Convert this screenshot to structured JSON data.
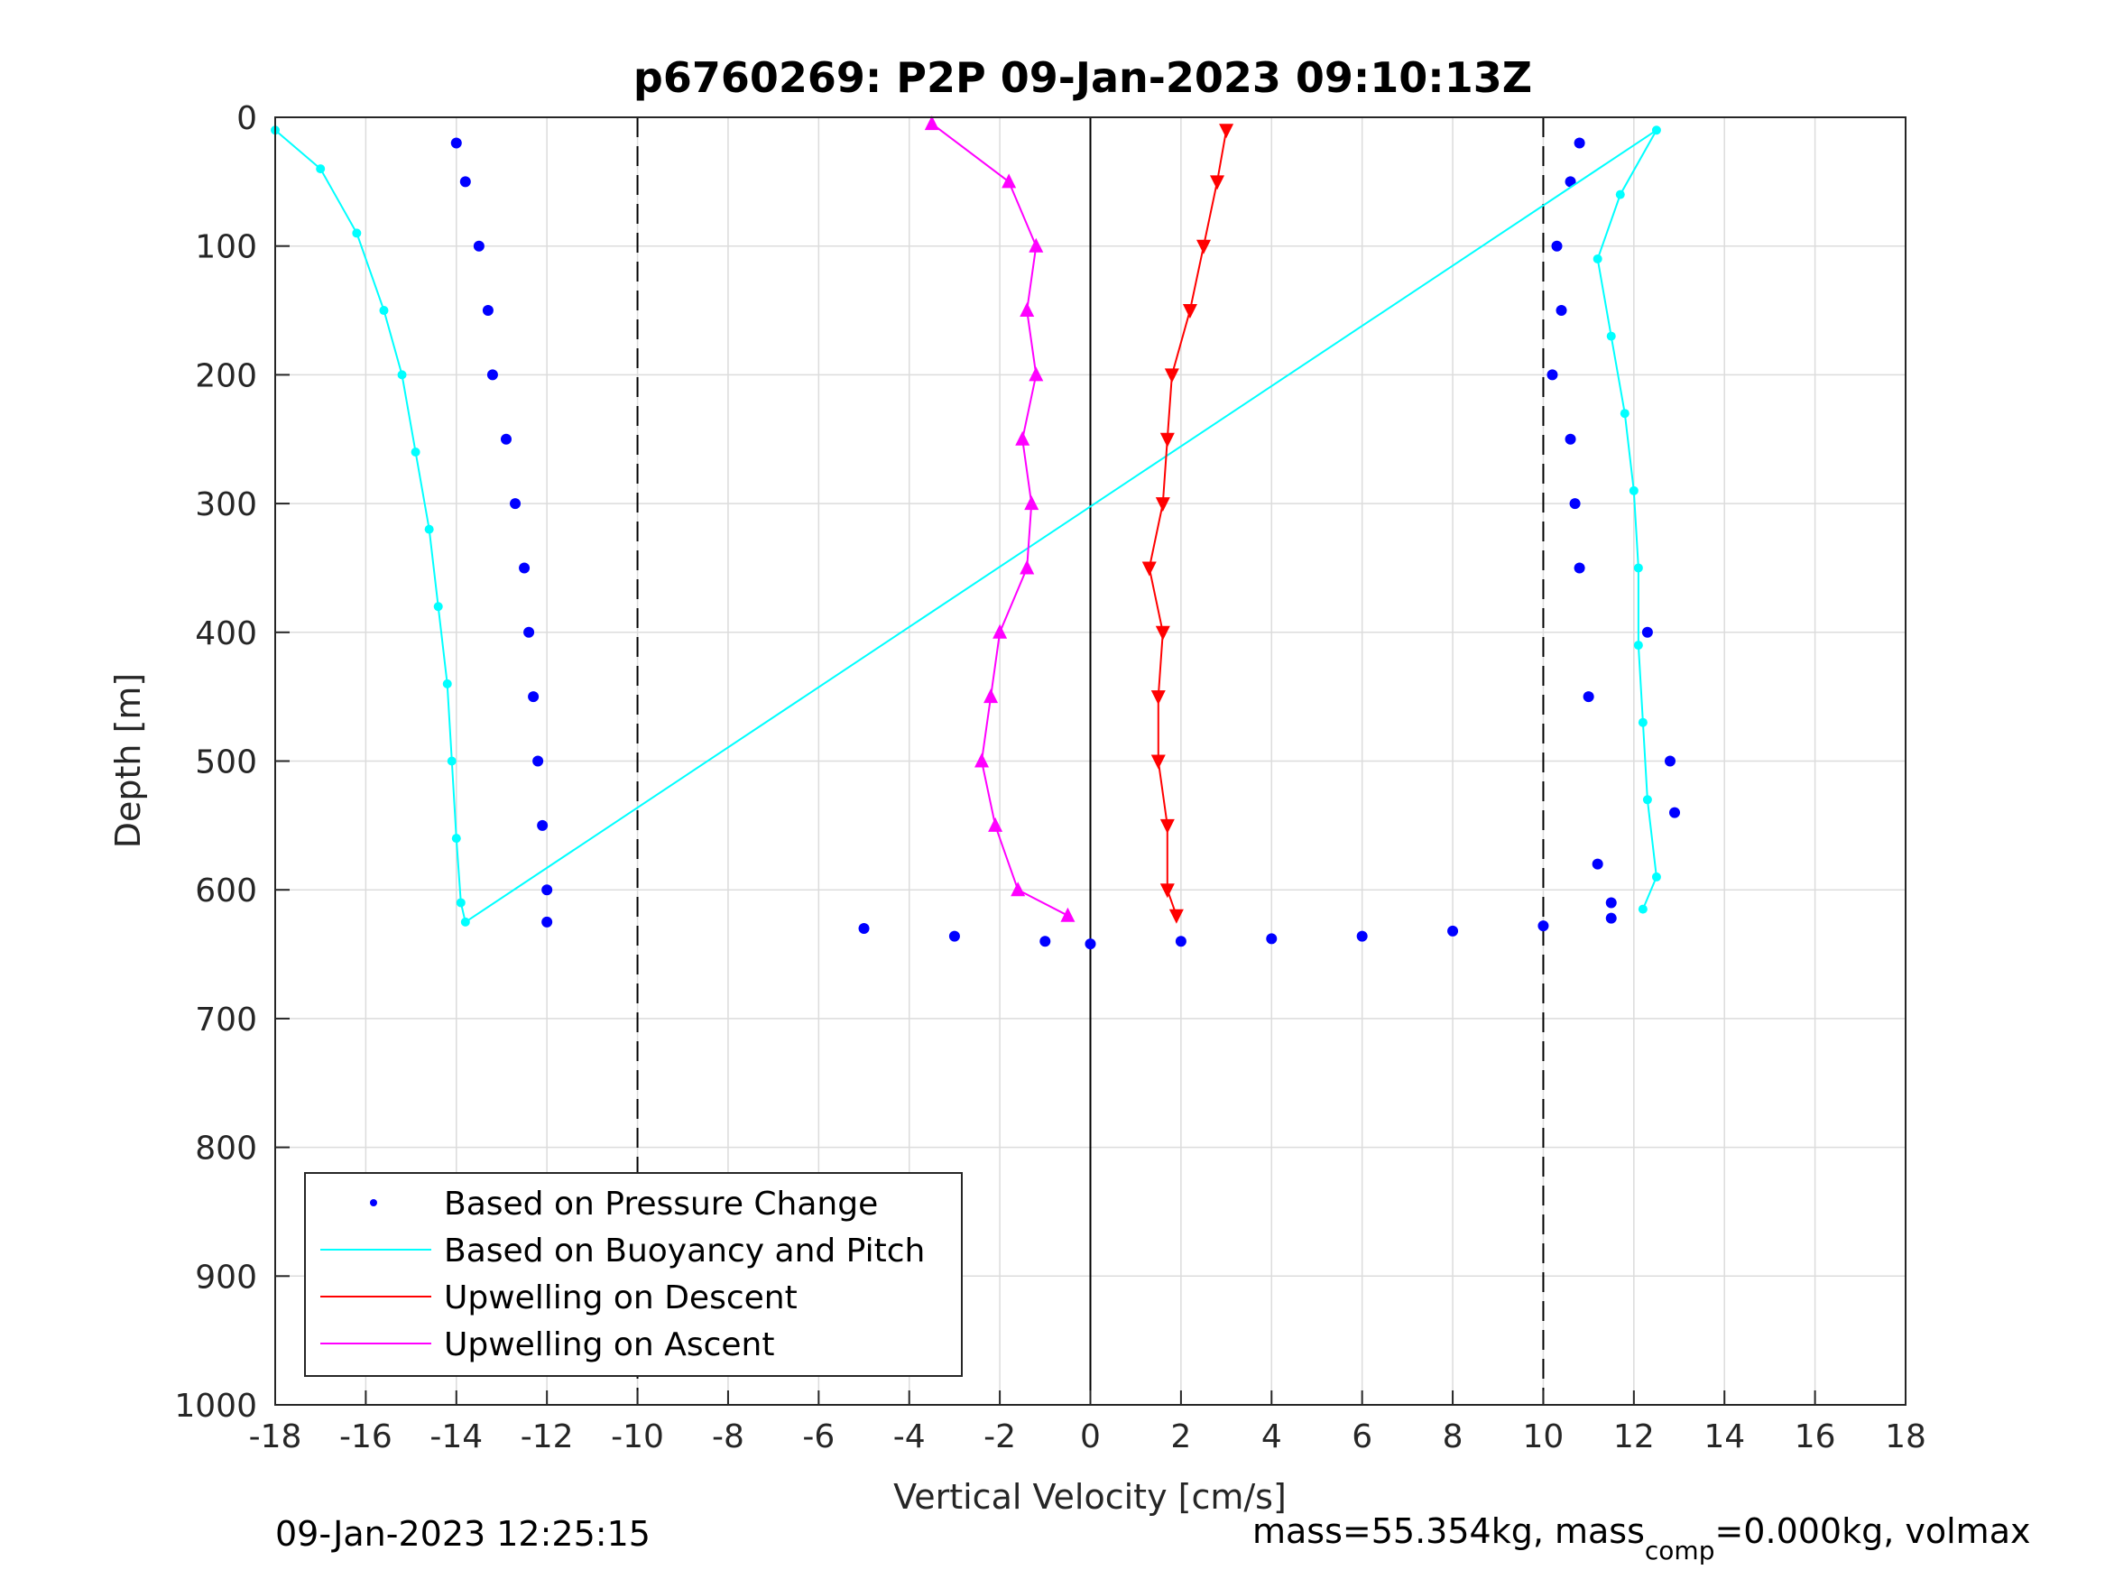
{
  "chart_data": {
    "type": "scatter",
    "title": "p6760269: P2P 09-Jan-2023 09:10:13Z",
    "xlabel": "Vertical Velocity [cm/s]",
    "ylabel": "Depth [m]",
    "xlim": [
      -18,
      18
    ],
    "ylim": [
      0,
      1000
    ],
    "y_reversed": true,
    "grid": true,
    "x_ticks": [
      "-18",
      "-16",
      "-14",
      "-12",
      "-10",
      "-8",
      "-6",
      "-4",
      "-2",
      "0",
      "2",
      "4",
      "6",
      "8",
      "10",
      "12",
      "14",
      "16",
      "18"
    ],
    "y_ticks": [
      "0",
      "100",
      "200",
      "300",
      "400",
      "500",
      "600",
      "700",
      "800",
      "900",
      "1000"
    ],
    "reference_lines": [
      {
        "x": -10,
        "style": "dashed"
      },
      {
        "x": 0,
        "style": "solid"
      },
      {
        "x": 10,
        "style": "dashed"
      }
    ],
    "legend": {
      "placement": "bottom-left",
      "entries": [
        {
          "label": "Based on Pressure Change",
          "color": "#0000ff",
          "marker": "dot"
        },
        {
          "label": "Based on Buoyancy and Pitch",
          "color": "#00ffff",
          "marker": "line"
        },
        {
          "label": "Upwelling on Descent",
          "color": "#ff0000",
          "marker": "line"
        },
        {
          "label": "Upwelling on Ascent",
          "color": "#ff00ff",
          "marker": "line"
        }
      ]
    },
    "series": [
      {
        "name": "Based on Pressure Change",
        "color": "#0000ff",
        "style": "dots",
        "points": [
          [
            -14,
            20
          ],
          [
            -13.8,
            50
          ],
          [
            -13.5,
            100
          ],
          [
            -13.3,
            150
          ],
          [
            -13.2,
            200
          ],
          [
            -12.9,
            250
          ],
          [
            -12.7,
            300
          ],
          [
            -12.5,
            350
          ],
          [
            -12.4,
            400
          ],
          [
            -12.3,
            450
          ],
          [
            -12.2,
            500
          ],
          [
            -12.1,
            550
          ],
          [
            -12,
            600
          ],
          [
            -12,
            625
          ],
          [
            10.8,
            20
          ],
          [
            10.6,
            50
          ],
          [
            10.3,
            100
          ],
          [
            10.4,
            150
          ],
          [
            10.2,
            200
          ],
          [
            10.6,
            250
          ],
          [
            10.7,
            300
          ],
          [
            10.8,
            350
          ],
          [
            12.3,
            400
          ],
          [
            11,
            450
          ],
          [
            12.8,
            500
          ],
          [
            12.9,
            540
          ],
          [
            11.2,
            580
          ],
          [
            11.5,
            610
          ],
          [
            -5,
            630
          ],
          [
            -3,
            636
          ],
          [
            -1,
            640
          ],
          [
            0,
            642
          ],
          [
            2,
            640
          ],
          [
            4,
            638
          ],
          [
            6,
            636
          ],
          [
            8,
            632
          ],
          [
            10,
            628
          ],
          [
            11.5,
            622
          ]
        ]
      },
      {
        "name": "Based on Buoyancy and Pitch",
        "color": "#00ffff",
        "style": "line-markers",
        "points": [
          [
            -18,
            10
          ],
          [
            -17,
            40
          ],
          [
            -16.2,
            90
          ],
          [
            -15.6,
            150
          ],
          [
            -15.2,
            200
          ],
          [
            -14.9,
            260
          ],
          [
            -14.6,
            320
          ],
          [
            -14.4,
            380
          ],
          [
            -14.2,
            440
          ],
          [
            -14.1,
            500
          ],
          [
            -14,
            560
          ],
          [
            -13.9,
            610
          ],
          [
            -13.8,
            625
          ],
          [
            12.5,
            10
          ],
          [
            11.7,
            60
          ],
          [
            11.2,
            110
          ],
          [
            11.5,
            170
          ],
          [
            11.8,
            230
          ],
          [
            12,
            290
          ],
          [
            12.1,
            350
          ],
          [
            12.1,
            410
          ],
          [
            12.2,
            470
          ],
          [
            12.3,
            530
          ],
          [
            12.5,
            590
          ],
          [
            12.2,
            615
          ]
        ]
      },
      {
        "name": "Upwelling on Descent",
        "color": "#ff0000",
        "style": "triangle-down",
        "points": [
          [
            3,
            10
          ],
          [
            2.8,
            50
          ],
          [
            2.5,
            100
          ],
          [
            2.2,
            150
          ],
          [
            1.8,
            200
          ],
          [
            1.7,
            250
          ],
          [
            1.6,
            300
          ],
          [
            1.3,
            350
          ],
          [
            1.6,
            400
          ],
          [
            1.5,
            450
          ],
          [
            1.5,
            500
          ],
          [
            1.7,
            550
          ],
          [
            1.7,
            600
          ],
          [
            1.9,
            620
          ]
        ]
      },
      {
        "name": "Upwelling on Ascent",
        "color": "#ff00ff",
        "style": "triangle-up",
        "points": [
          [
            -3.5,
            5
          ],
          [
            -1.8,
            50
          ],
          [
            -1.2,
            100
          ],
          [
            -1.4,
            150
          ],
          [
            -1.2,
            200
          ],
          [
            -1.5,
            250
          ],
          [
            -1.3,
            300
          ],
          [
            -1.4,
            350
          ],
          [
            -2,
            400
          ],
          [
            -2.2,
            450
          ],
          [
            -2.4,
            500
          ],
          [
            -2.1,
            550
          ],
          [
            -1.6,
            600
          ],
          [
            -0.5,
            620
          ]
        ]
      }
    ],
    "annotations": {
      "bottom_left": "09-Jan-2023 12:25:15",
      "bottom_right_main": "mass=55.354kg, mass",
      "bottom_right_sub": "comp",
      "bottom_right_tail": "=0.000kg, volmax"
    }
  }
}
